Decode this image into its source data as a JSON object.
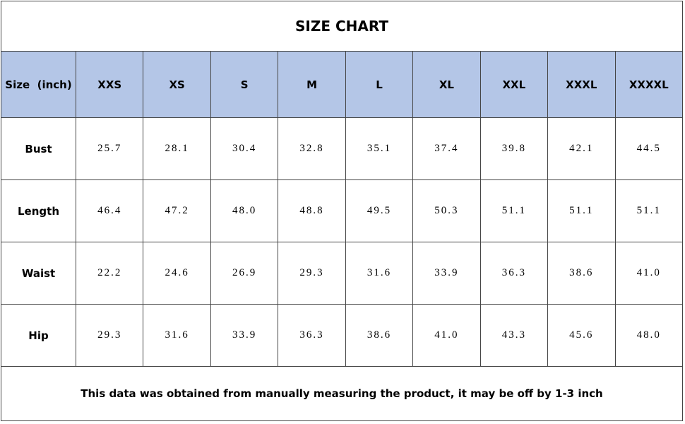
{
  "title": "SIZE CHART",
  "table": {
    "header": [
      "Size  (inch)",
      "XXS",
      "XS",
      "S",
      "M",
      "L",
      "XL",
      "XXL",
      "XXXL",
      "XXXXL"
    ],
    "rows": [
      [
        "Bust",
        "25.7",
        "28.1",
        "30.4",
        "32.8",
        "35.1",
        "37.4",
        "39.8",
        "42.1",
        "44.5"
      ],
      [
        "Length",
        "46.4",
        "47.2",
        "48.0",
        "48.8",
        "49.5",
        "50.3",
        "51.1",
        "51.1",
        "51.1"
      ],
      [
        "Waist",
        "22.2",
        "24.6",
        "26.9",
        "29.3",
        "31.6",
        "33.9",
        "36.3",
        "38.6",
        "41.0"
      ],
      [
        "Hip",
        "29.3",
        "31.6",
        "33.9",
        "36.3",
        "38.6",
        "41.0",
        "43.3",
        "45.6",
        "48.0"
      ]
    ]
  },
  "footer": "This data was obtained from manually measuring the product, it may be off by 1-3 inch"
}
